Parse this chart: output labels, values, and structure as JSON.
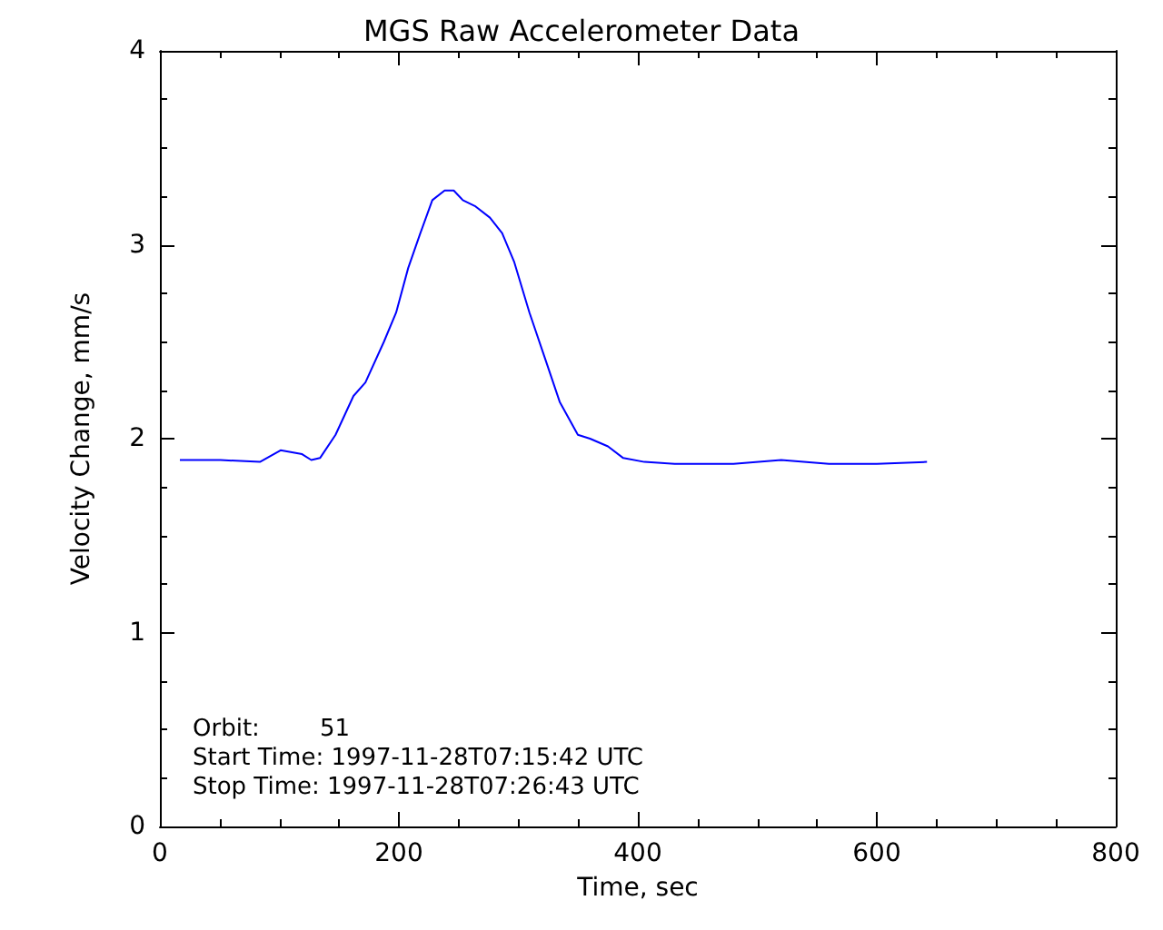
{
  "chart_data": {
    "type": "line",
    "title": "MGS Raw Accelerometer Data",
    "xlabel": "Time, sec",
    "ylabel": "Velocity Change, mm/s",
    "annotations": [
      "Orbit:        51",
      "Start Time: 1997-11-28T07:15:42 UTC",
      "Stop Time: 1997-11-28T07:26:43 UTC"
    ],
    "x": [
      16.7,
      50.7,
      83.7,
      101,
      119,
      126.7,
      134,
      147,
      162,
      172,
      187.5,
      197.7,
      207.8,
      218,
      228,
      238.3,
      245.9,
      253.5,
      263.6,
      276.2,
      286.4,
      296.6,
      309.3,
      322,
      334.6,
      349.8,
      360,
      375,
      387.8,
      405.5,
      430.9,
      480,
      520,
      560,
      600,
      642
    ],
    "series": [
      {
        "color": "#0000ff",
        "values": [
          1.89,
          1.89,
          1.88,
          1.94,
          1.92,
          1.89,
          1.9,
          2.02,
          2.22,
          2.29,
          2.5,
          2.65,
          2.88,
          3.06,
          3.23,
          3.28,
          3.28,
          3.23,
          3.2,
          3.14,
          3.06,
          2.91,
          2.65,
          2.42,
          2.19,
          2.02,
          2.0,
          1.96,
          1.9,
          1.88,
          1.87,
          1.87,
          1.89,
          1.87,
          1.87,
          1.88
        ]
      }
    ],
    "xlim": [
      0,
      800
    ],
    "xticks": [
      0,
      200,
      400,
      600,
      800
    ],
    "ylim": [
      0,
      4
    ],
    "yticks": [
      0,
      1,
      2,
      3,
      4
    ],
    "marker": "none",
    "line_style": "solid"
  }
}
